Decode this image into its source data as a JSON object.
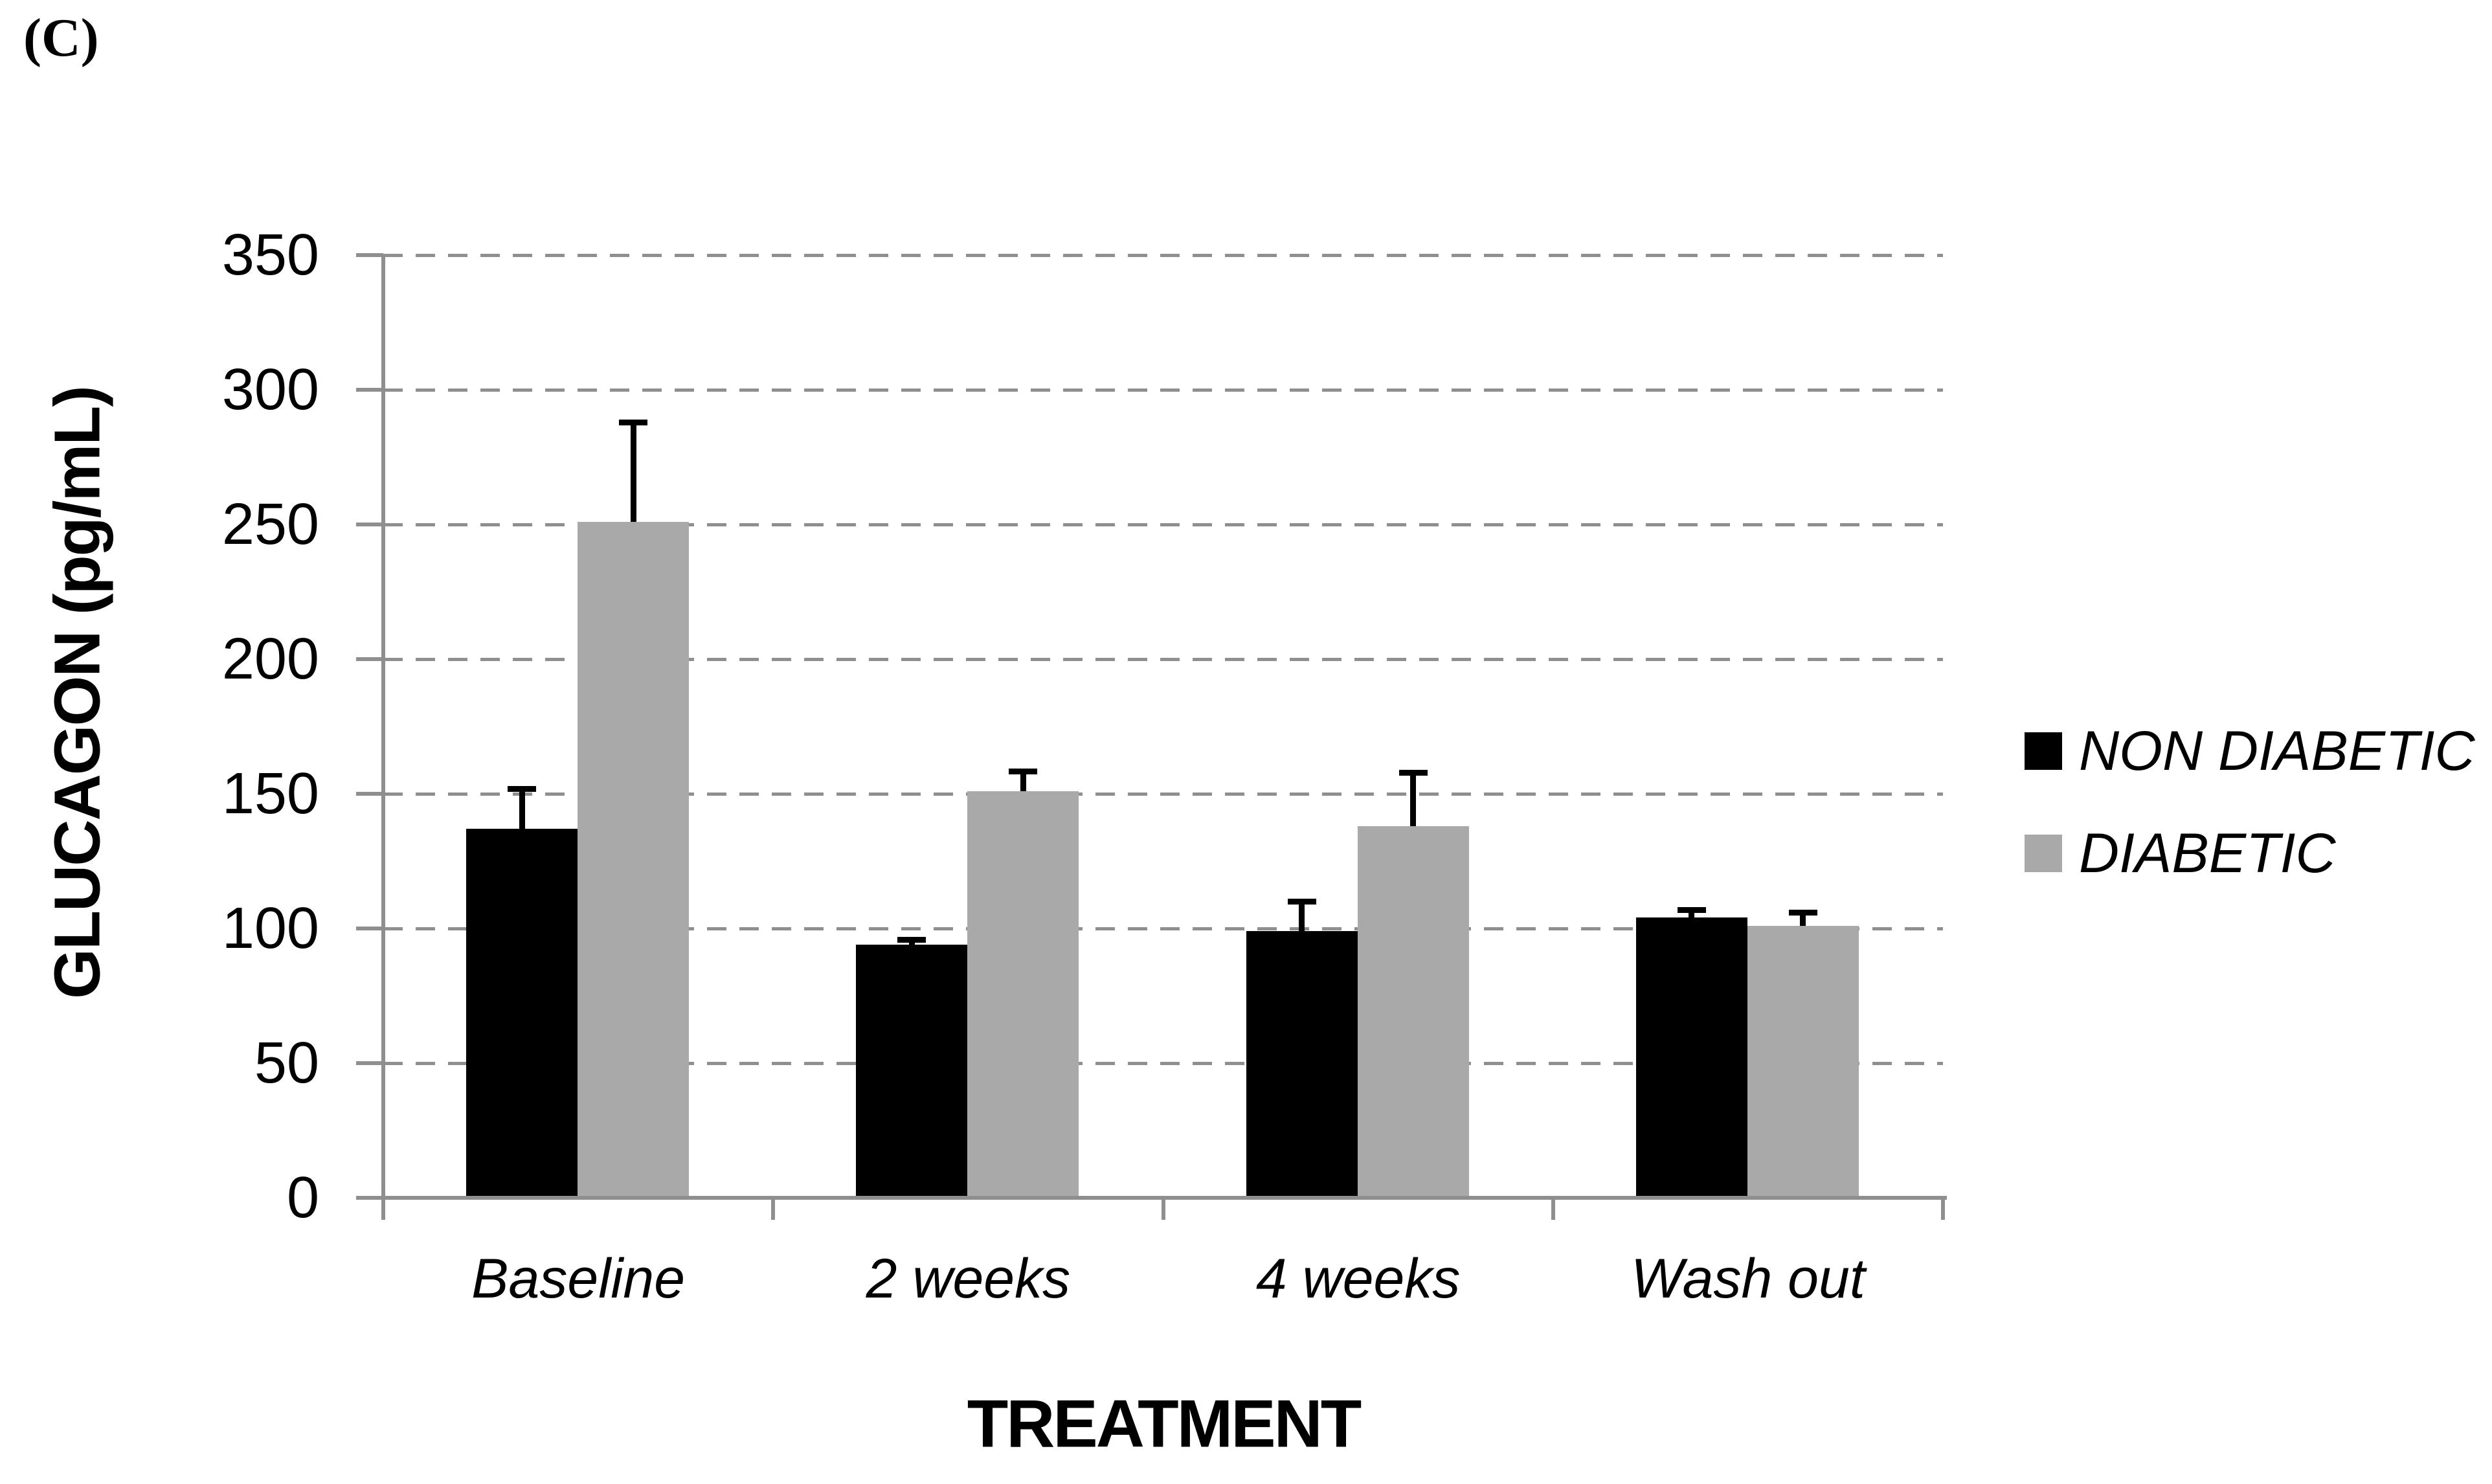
{
  "figure_label": "(C)",
  "chart_data": {
    "type": "bar",
    "title": "",
    "xlabel": "TREATMENT",
    "ylabel": "GLUCAGON (pg/mL)",
    "categories": [
      "Baseline",
      "2 weeks",
      "4 weeks",
      "Wash out"
    ],
    "series": [
      {
        "name": "NON DIABETIC",
        "color": "#000000",
        "values": [
          137,
          94,
          99,
          104
        ],
        "error_up": [
          15,
          2,
          11,
          3
        ]
      },
      {
        "name": "DIABETIC",
        "color": "#A9A9A9",
        "values": [
          251,
          151,
          138,
          101
        ],
        "error_up": [
          37,
          7.5,
          20,
          5
        ]
      }
    ],
    "ylim": [
      0,
      350
    ],
    "ytick_step": 50,
    "yticks": [
      0,
      50,
      100,
      150,
      200,
      250,
      300,
      350
    ],
    "grid": "dashed-horizontal",
    "legend_position": "right",
    "axis_color": "#8F8F8F",
    "grid_color": "#8F8F8F",
    "error_bar_color": "#000000"
  }
}
